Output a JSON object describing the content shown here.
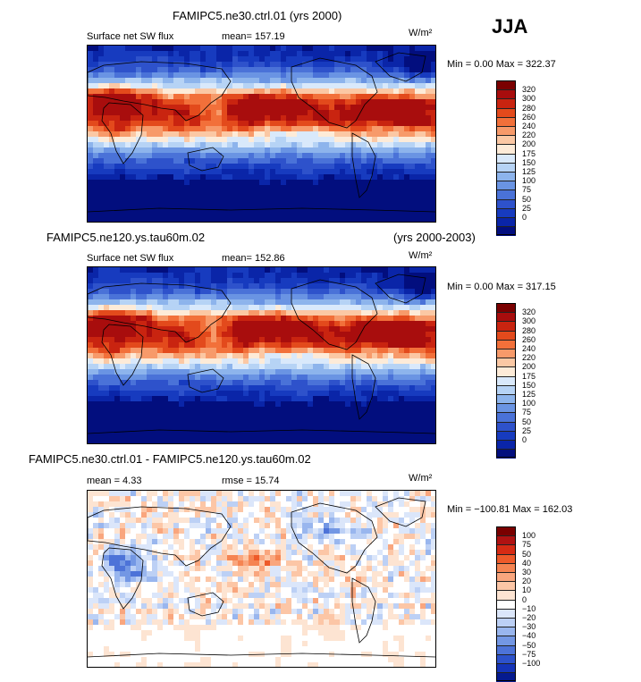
{
  "season_label": "JJA",
  "units": "W/m²",
  "panels": [
    {
      "id": "ctrl",
      "case_title": "FAMIPC5.ne30.ctrl.01 (yrs 2000)",
      "years": "",
      "variable": "Surface net SW flux",
      "stat_text": "mean=  157.19",
      "stat2_text": "",
      "minmax": "Min =   0.00  Max =  322.37",
      "scale": "abs",
      "colorbar": {
        "colors": [
          "#7a0000",
          "#a80d0d",
          "#c92410",
          "#e34a1c",
          "#f2703a",
          "#f79a6a",
          "#fbc8a4",
          "#fdebd8",
          "#d9e9fb",
          "#b6d3f5",
          "#8db4ec",
          "#6a94e3",
          "#4a72d8",
          "#2e52cb",
          "#173bbf",
          "#0a25a8",
          "#020e7e"
        ],
        "labels": [
          "320",
          "300",
          "280",
          "260",
          "240",
          "220",
          "200",
          "175",
          "150",
          "125",
          "100",
          "75",
          "50",
          "25",
          "0"
        ]
      }
    },
    {
      "id": "hires",
      "case_title": "FAMIPC5.ne120.ys.tau60m.02",
      "years": "(yrs 2000-2003)",
      "variable": "Surface net SW flux",
      "stat_text": "mean=  152.86",
      "stat2_text": "",
      "minmax": "Min =   0.00  Max =  317.15",
      "scale": "abs",
      "colorbar": {
        "colors": [
          "#7a0000",
          "#a80d0d",
          "#c92410",
          "#e34a1c",
          "#f2703a",
          "#f79a6a",
          "#fbc8a4",
          "#fdebd8",
          "#d9e9fb",
          "#b6d3f5",
          "#8db4ec",
          "#6a94e3",
          "#4a72d8",
          "#2e52cb",
          "#173bbf",
          "#0a25a8",
          "#020e7e"
        ],
        "labels": [
          "320",
          "300",
          "280",
          "260",
          "240",
          "220",
          "200",
          "175",
          "150",
          "125",
          "100",
          "75",
          "50",
          "25",
          "0"
        ]
      }
    },
    {
      "id": "diff",
      "case_title": "FAMIPC5.ne30.ctrl.01 - FAMIPC5.ne120.ys.tau60m.02",
      "years": "",
      "variable": "mean =   4.33",
      "stat_text": "rmse =   15.74",
      "stat2_text": "",
      "minmax": "Min = −100.81  Max =  162.03",
      "scale": "diff",
      "colorbar": {
        "colors": [
          "#7a0000",
          "#b01212",
          "#d62b14",
          "#ee5a2a",
          "#f58452",
          "#f9a67e",
          "#fcc6a6",
          "#fde4d2",
          "#ffffff",
          "#dbe6fa",
          "#bcd0f5",
          "#99b6ee",
          "#7397e4",
          "#4d73d8",
          "#2d52cb",
          "#1534b8",
          "#051a8f"
        ],
        "labels": [
          "100",
          "75",
          "50",
          "40",
          "30",
          "20",
          "10",
          "0",
          "−10",
          "−20",
          "−30",
          "−40",
          "−50",
          "−75",
          "−100"
        ]
      }
    }
  ]
}
